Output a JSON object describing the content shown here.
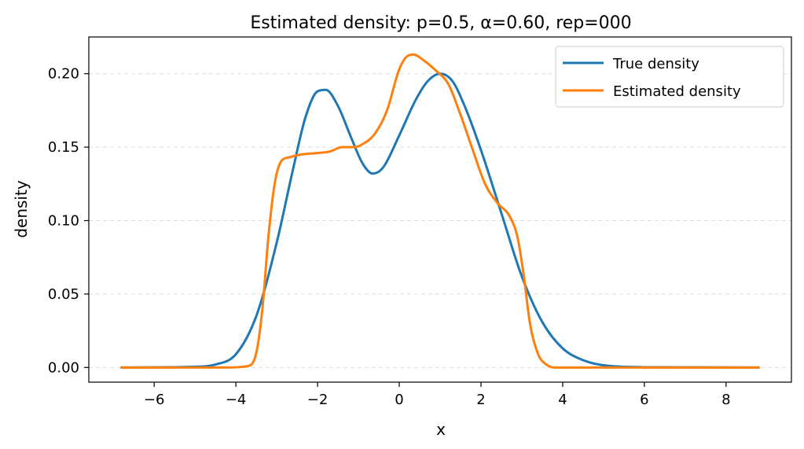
{
  "chart_data": {
    "type": "line",
    "title": "Estimated density: p=0.5, α=0.60, rep=000",
    "xlabel": "x",
    "ylabel": "density",
    "xlim": [
      -7.6,
      9.6
    ],
    "ylim": [
      -0.01,
      0.225
    ],
    "xticks": [
      -6,
      -4,
      -2,
      0,
      2,
      4,
      6,
      8
    ],
    "xtick_labels": [
      "−6",
      "−4",
      "−2",
      "0",
      "2",
      "4",
      "6",
      "8"
    ],
    "yticks": [
      0.0,
      0.05,
      0.1,
      0.15,
      0.2
    ],
    "ytick_labels": [
      "0.00",
      "0.05",
      "0.10",
      "0.15",
      "0.20"
    ],
    "grid": {
      "y": true,
      "x": false,
      "style": "dashed"
    },
    "legend": {
      "position": "top-right"
    },
    "series": [
      {
        "name": "True density",
        "color": "#1f77b4",
        "x": [
          -6.8,
          -5.0,
          -4.5,
          -4.0,
          -3.5,
          -3.0,
          -2.6,
          -2.3,
          -2.0,
          -1.8,
          -1.5,
          -1.2,
          -0.9,
          -0.65,
          -0.4,
          0.0,
          0.4,
          0.7,
          1.0,
          1.3,
          1.6,
          2.0,
          2.5,
          3.0,
          3.5,
          4.0,
          4.5,
          5.0,
          6.0,
          8.8
        ],
        "y": [
          0.0,
          0.0005,
          0.002,
          0.009,
          0.035,
          0.085,
          0.135,
          0.17,
          0.188,
          0.189,
          0.178,
          0.158,
          0.139,
          0.132,
          0.136,
          0.158,
          0.182,
          0.195,
          0.2,
          0.195,
          0.178,
          0.148,
          0.105,
          0.062,
          0.031,
          0.013,
          0.005,
          0.0015,
          0.0002,
          0.0
        ]
      },
      {
        "name": "Estimated density",
        "color": "#ff7f0e",
        "x": [
          -6.8,
          -5.0,
          -4.2,
          -3.7,
          -3.5,
          -3.35,
          -3.2,
          -3.05,
          -2.9,
          -2.7,
          -2.4,
          -2.0,
          -1.7,
          -1.4,
          -1.1,
          -0.9,
          -0.6,
          -0.3,
          0.0,
          0.2,
          0.35,
          0.6,
          0.9,
          1.2,
          1.5,
          1.8,
          2.1,
          2.4,
          2.7,
          2.9,
          3.05,
          3.2,
          3.4,
          3.6,
          3.8,
          4.2,
          5.0,
          6.0,
          8.8
        ],
        "y": [
          0.0,
          0.0,
          0.0,
          0.001,
          0.01,
          0.04,
          0.09,
          0.125,
          0.14,
          0.143,
          0.145,
          0.146,
          0.147,
          0.15,
          0.15,
          0.152,
          0.159,
          0.175,
          0.203,
          0.212,
          0.213,
          0.209,
          0.202,
          0.193,
          0.172,
          0.148,
          0.125,
          0.112,
          0.103,
          0.088,
          0.062,
          0.03,
          0.009,
          0.002,
          0.0,
          0.0,
          0.0,
          0.0,
          0.0
        ]
      }
    ]
  }
}
